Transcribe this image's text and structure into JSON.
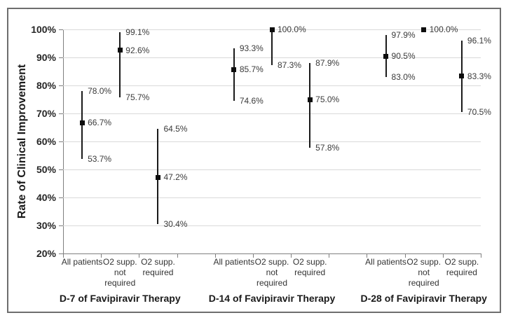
{
  "chart_data": {
    "type": "scatter",
    "subtype": "point-estimates-with-error-bars",
    "title": "",
    "xlabel": "",
    "ylabel": "Rate of Clinical Improvement",
    "ylim": [
      20,
      100
    ],
    "ytick_step": 10,
    "ytick_labels": [
      "100%",
      "90%",
      "80%",
      "70%",
      "60%",
      "50%",
      "40%",
      "30%",
      "20%"
    ],
    "grid": "horizontal-light-gray",
    "legend": "none",
    "marker_style": "filled-black-square",
    "groups": [
      {
        "label": "D-7 of Favipiravir Therapy",
        "points": [
          {
            "category": "All patients",
            "category_lines": [
              "All patients"
            ],
            "value": 66.7,
            "ci_low": 53.7,
            "ci_high": 78.0,
            "value_label": "66.7%",
            "low_label": "53.7%",
            "high_label": "78.0%"
          },
          {
            "category": "O2 supp. not required",
            "category_lines": [
              "O2 supp.",
              "not",
              "required"
            ],
            "value": 92.6,
            "ci_low": 75.7,
            "ci_high": 99.1,
            "value_label": "92.6%",
            "low_label": "75.7%",
            "high_label": "99.1%"
          },
          {
            "category": "O2 supp. required",
            "category_lines": [
              "O2 supp.",
              "required"
            ],
            "value": 47.2,
            "ci_low": 30.4,
            "ci_high": 64.5,
            "value_label": "47.2%",
            "low_label": "30.4%",
            "high_label": "64.5%"
          }
        ]
      },
      {
        "label": "D-14 of Favipiravir Therapy",
        "points": [
          {
            "category": "All patients",
            "category_lines": [
              "All patients"
            ],
            "value": 85.7,
            "ci_low": 74.6,
            "ci_high": 93.3,
            "value_label": "85.7%",
            "low_label": "74.6%",
            "high_label": "93.3%"
          },
          {
            "category": "O2 supp. not required",
            "category_lines": [
              "O2 supp.",
              "not",
              "required"
            ],
            "value": 100.0,
            "ci_low": 87.3,
            "ci_high": 100.0,
            "value_label": "100.0%",
            "low_label": "87.3%",
            "high_label": null
          },
          {
            "category": "O2 supp. required",
            "category_lines": [
              "O2 supp.",
              "required"
            ],
            "value": 75.0,
            "ci_low": 57.8,
            "ci_high": 87.9,
            "value_label": "75.0%",
            "low_label": "57.8%",
            "high_label": "87.9%"
          }
        ]
      },
      {
        "label": "D-28 of Favipiravir Therapy",
        "points": [
          {
            "category": "All patients",
            "category_lines": [
              "All patients"
            ],
            "value": 90.5,
            "ci_low": 83.0,
            "ci_high": 97.9,
            "value_label": "90.5%",
            "low_label": "83.0%",
            "high_label": "97.9%"
          },
          {
            "category": "O2 supp. not required",
            "category_lines": [
              "O2 supp.",
              "not",
              "required"
            ],
            "value": 100.0,
            "ci_low": null,
            "ci_high": null,
            "value_label": "100.0%",
            "low_label": null,
            "high_label": null
          },
          {
            "category": "O2 supp. required",
            "category_lines": [
              "O2 supp.",
              "required"
            ],
            "value": 83.3,
            "ci_low": 70.5,
            "ci_high": 96.1,
            "value_label": "83.3%",
            "low_label": "70.5%",
            "high_label": "96.1%"
          }
        ]
      }
    ],
    "colors": {
      "marker": "#0d0d0d",
      "whisker": "#1a1a1a",
      "gridline": "#d9d9d9",
      "axis": "#808080",
      "label_text": "#3a3a3a",
      "frame_border": "#6e6e6e",
      "background": "#ffffff"
    }
  }
}
